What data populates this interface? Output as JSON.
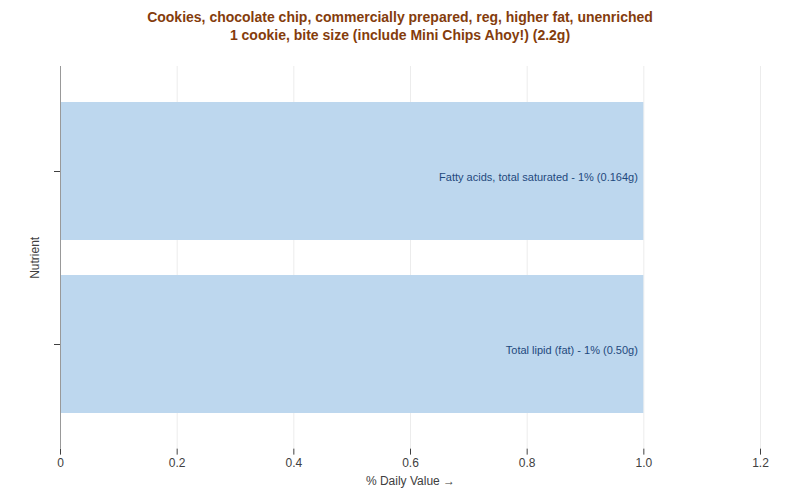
{
  "chart_data": {
    "type": "bar",
    "orientation": "horizontal",
    "title": "Cookies, chocolate chip, commercially prepared, reg, higher fat, unenriched\n1 cookie, bite size (include Mini Chips Ahoy!) (2.2g)",
    "xlabel": "% Daily Value",
    "ylabel": "Nutrient",
    "categories": [
      "Fatty acids, total saturated - 1% (0.164g)",
      "Total lipid (fat) - 1% (0.50g)"
    ],
    "values": [
      1,
      1
    ],
    "color": "#bdd7ee",
    "xlim": [
      0,
      1.2
    ],
    "xticks": [
      0,
      0.2,
      0.4,
      0.6,
      0.8,
      {
        "value": 1,
        "label": "1.0"
      },
      1.2
    ],
    "grid": true,
    "tick_labels": "x"
  }
}
